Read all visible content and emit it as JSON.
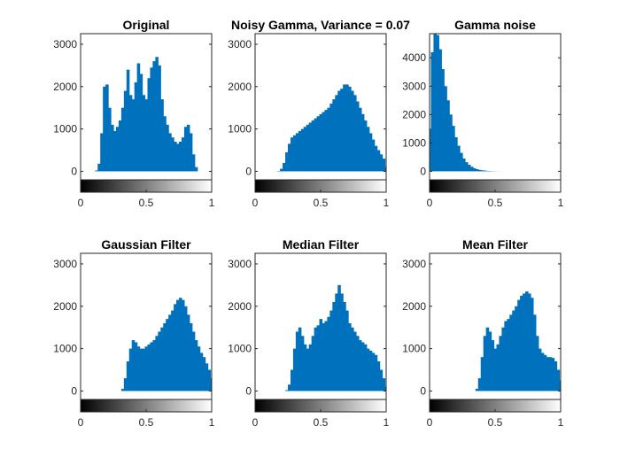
{
  "figure": {
    "colors": {
      "histogram": "#0072BD",
      "axes": "#262626",
      "background": "#ffffff"
    },
    "colorbar": "grayscale gradient from black (0) to white (1) below each histogram"
  },
  "chart_data": [
    {
      "type": "bar",
      "title": "Original",
      "xlabel": "",
      "ylabel": "",
      "xlim": [
        0,
        1
      ],
      "ylim": [
        -200,
        3250
      ],
      "xticks": [
        "0",
        "0.5",
        "1"
      ],
      "yticks": [
        "0",
        "1000",
        "2000",
        "3000"
      ],
      "x": [
        0.0,
        0.02,
        0.04,
        0.06,
        0.08,
        0.1,
        0.12,
        0.14,
        0.16,
        0.18,
        0.2,
        0.22,
        0.24,
        0.26,
        0.28,
        0.3,
        0.32,
        0.34,
        0.36,
        0.38,
        0.4,
        0.42,
        0.44,
        0.46,
        0.48,
        0.5,
        0.52,
        0.54,
        0.56,
        0.58,
        0.6,
        0.62,
        0.64,
        0.66,
        0.68,
        0.7,
        0.72,
        0.74,
        0.76,
        0.78,
        0.8,
        0.82,
        0.84,
        0.86,
        0.88,
        0.9,
        0.92,
        0.94,
        0.96,
        0.98,
        1.0
      ],
      "values": [
        0,
        0,
        0,
        0,
        0,
        0,
        20,
        180,
        900,
        2000,
        2050,
        1500,
        1100,
        950,
        1050,
        1200,
        1500,
        1900,
        2400,
        1800,
        1700,
        2100,
        2550,
        2300,
        1800,
        1700,
        2200,
        2450,
        2600,
        2700,
        2500,
        1700,
        1300,
        1100,
        900,
        800,
        700,
        650,
        700,
        800,
        1050,
        1100,
        900,
        400,
        100,
        0,
        0,
        0,
        0,
        0,
        0
      ]
    },
    {
      "type": "bar",
      "title": "Noisy Gamma, Variance = 0.07",
      "xlabel": "",
      "ylabel": "",
      "xlim": [
        0,
        1
      ],
      "ylim": [
        -200,
        3250
      ],
      "xticks": [
        "0",
        "0.5",
        "1"
      ],
      "yticks": [
        "0",
        "1000",
        "2000",
        "3000"
      ],
      "x": [
        0.0,
        0.02,
        0.04,
        0.06,
        0.08,
        0.1,
        0.12,
        0.14,
        0.16,
        0.18,
        0.2,
        0.22,
        0.24,
        0.26,
        0.28,
        0.3,
        0.32,
        0.34,
        0.36,
        0.38,
        0.4,
        0.42,
        0.44,
        0.46,
        0.48,
        0.5,
        0.52,
        0.54,
        0.56,
        0.58,
        0.6,
        0.62,
        0.64,
        0.66,
        0.68,
        0.7,
        0.72,
        0.74,
        0.76,
        0.78,
        0.8,
        0.82,
        0.84,
        0.86,
        0.88,
        0.9,
        0.92,
        0.94,
        0.96,
        0.98,
        1.0
      ],
      "values": [
        0,
        0,
        0,
        0,
        0,
        0,
        0,
        0,
        0,
        10,
        60,
        200,
        450,
        650,
        800,
        850,
        900,
        950,
        1000,
        1050,
        1100,
        1150,
        1200,
        1250,
        1300,
        1350,
        1400,
        1450,
        1500,
        1600,
        1700,
        1800,
        1900,
        1950,
        2050,
        2050,
        2000,
        1900,
        1800,
        1650,
        1500,
        1350,
        1200,
        1050,
        900,
        750,
        600,
        500,
        400,
        300,
        100
      ]
    },
    {
      "type": "bar",
      "title": "Gamma noise",
      "xlabel": "",
      "ylabel": "",
      "xlim": [
        0,
        1
      ],
      "ylim": [
        -300,
        4850
      ],
      "xticks": [
        "0",
        "0.5",
        "1"
      ],
      "yticks": [
        "0",
        "1000",
        "2000",
        "3000",
        "4000"
      ],
      "x": [
        0.0,
        0.02,
        0.04,
        0.06,
        0.08,
        0.1,
        0.12,
        0.14,
        0.16,
        0.18,
        0.2,
        0.22,
        0.24,
        0.26,
        0.28,
        0.3,
        0.32,
        0.34,
        0.36,
        0.38,
        0.4,
        0.42,
        0.44,
        0.46,
        0.48,
        0.5,
        0.52,
        0.54,
        0.56,
        0.58,
        0.6,
        0.62,
        0.64,
        0.66,
        0.68,
        0.7,
        0.72,
        0.74,
        0.76,
        0.78,
        0.8,
        0.82,
        0.84,
        0.86,
        0.88,
        0.9,
        0.92,
        0.94,
        0.96,
        0.98,
        1.0
      ],
      "values": [
        1500,
        4200,
        4900,
        4800,
        4300,
        3600,
        3000,
        2500,
        2000,
        1600,
        1200,
        900,
        650,
        450,
        320,
        230,
        160,
        110,
        75,
        50,
        35,
        25,
        15,
        10,
        5,
        3,
        2,
        1,
        0,
        0,
        0,
        0,
        0,
        0,
        0,
        0,
        0,
        0,
        0,
        0,
        0,
        0,
        0,
        0,
        0,
        0,
        0,
        0,
        0,
        0,
        0
      ]
    },
    {
      "type": "bar",
      "title": "Gaussian Filter",
      "xlabel": "",
      "ylabel": "",
      "xlim": [
        0,
        1
      ],
      "ylim": [
        -200,
        3250
      ],
      "xticks": [
        "0",
        "0.5",
        "1"
      ],
      "yticks": [
        "0",
        "1000",
        "2000",
        "3000"
      ],
      "x": [
        0.0,
        0.02,
        0.04,
        0.06,
        0.08,
        0.1,
        0.12,
        0.14,
        0.16,
        0.18,
        0.2,
        0.22,
        0.24,
        0.26,
        0.28,
        0.3,
        0.32,
        0.34,
        0.36,
        0.38,
        0.4,
        0.42,
        0.44,
        0.46,
        0.48,
        0.5,
        0.52,
        0.54,
        0.56,
        0.58,
        0.6,
        0.62,
        0.64,
        0.66,
        0.68,
        0.7,
        0.72,
        0.74,
        0.76,
        0.78,
        0.8,
        0.82,
        0.84,
        0.86,
        0.88,
        0.9,
        0.92,
        0.94,
        0.96,
        0.98,
        1.0
      ],
      "values": [
        0,
        0,
        0,
        0,
        0,
        0,
        0,
        0,
        0,
        0,
        0,
        0,
        0,
        0,
        0,
        0,
        50,
        300,
        700,
        1000,
        1200,
        1150,
        1050,
        1000,
        1000,
        1050,
        1100,
        1150,
        1200,
        1300,
        1400,
        1500,
        1600,
        1700,
        1800,
        1900,
        2050,
        2150,
        2200,
        2150,
        2000,
        1800,
        1600,
        1400,
        1200,
        1050,
        900,
        800,
        650,
        500,
        300
      ]
    },
    {
      "type": "bar",
      "title": "Median Filter",
      "xlabel": "",
      "ylabel": "",
      "xlim": [
        0,
        1
      ],
      "ylim": [
        -200,
        3250
      ],
      "xticks": [
        "0",
        "0.5",
        "1"
      ],
      "yticks": [
        "0",
        "1000",
        "2000",
        "3000"
      ],
      "x": [
        0.0,
        0.02,
        0.04,
        0.06,
        0.08,
        0.1,
        0.12,
        0.14,
        0.16,
        0.18,
        0.2,
        0.22,
        0.24,
        0.26,
        0.28,
        0.3,
        0.32,
        0.34,
        0.36,
        0.38,
        0.4,
        0.42,
        0.44,
        0.46,
        0.48,
        0.5,
        0.52,
        0.54,
        0.56,
        0.58,
        0.6,
        0.62,
        0.64,
        0.66,
        0.68,
        0.7,
        0.72,
        0.74,
        0.76,
        0.78,
        0.8,
        0.82,
        0.84,
        0.86,
        0.88,
        0.9,
        0.92,
        0.94,
        0.96,
        0.98,
        1.0
      ],
      "values": [
        0,
        0,
        0,
        0,
        0,
        0,
        0,
        0,
        0,
        0,
        0,
        0,
        20,
        150,
        500,
        1000,
        1400,
        1500,
        1300,
        1100,
        1000,
        1100,
        1300,
        1500,
        1550,
        1700,
        1600,
        1650,
        1750,
        1900,
        2100,
        2300,
        2500,
        2300,
        2100,
        1900,
        1600,
        1500,
        1400,
        1300,
        1200,
        1150,
        1100,
        1000,
        950,
        900,
        850,
        700,
        500,
        300,
        100
      ]
    },
    {
      "type": "bar",
      "title": "Mean Filter",
      "xlabel": "",
      "ylabel": "",
      "xlim": [
        0,
        1
      ],
      "ylim": [
        -200,
        3250
      ],
      "xticks": [
        "0",
        "0.5",
        "1"
      ],
      "yticks": [
        "0",
        "1000",
        "2000",
        "3000"
      ],
      "x": [
        0.0,
        0.02,
        0.04,
        0.06,
        0.08,
        0.1,
        0.12,
        0.14,
        0.16,
        0.18,
        0.2,
        0.22,
        0.24,
        0.26,
        0.28,
        0.3,
        0.32,
        0.34,
        0.36,
        0.38,
        0.4,
        0.42,
        0.44,
        0.46,
        0.48,
        0.5,
        0.52,
        0.54,
        0.56,
        0.58,
        0.6,
        0.62,
        0.64,
        0.66,
        0.68,
        0.7,
        0.72,
        0.74,
        0.76,
        0.78,
        0.8,
        0.82,
        0.84,
        0.86,
        0.88,
        0.9,
        0.92,
        0.94,
        0.96,
        0.98,
        1.0
      ],
      "values": [
        0,
        0,
        0,
        0,
        0,
        0,
        0,
        0,
        0,
        0,
        0,
        0,
        0,
        0,
        0,
        0,
        0,
        0,
        50,
        300,
        800,
        1300,
        1500,
        1400,
        1200,
        1000,
        1100,
        1300,
        1500,
        1650,
        1700,
        1800,
        1900,
        2000,
        2150,
        2250,
        2300,
        2350,
        2300,
        2200,
        1800,
        1300,
        1000,
        900,
        850,
        800,
        800,
        780,
        700,
        500,
        250
      ]
    }
  ]
}
